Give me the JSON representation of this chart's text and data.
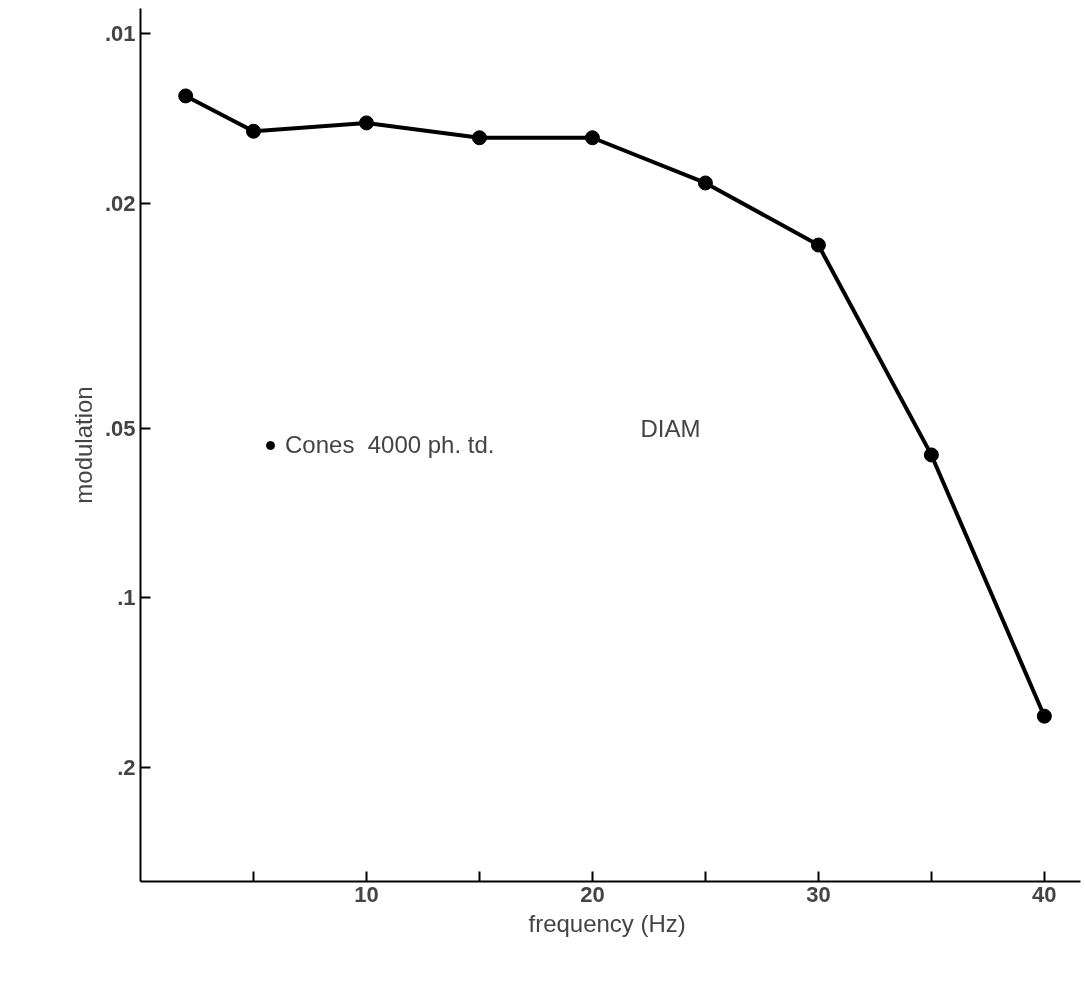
{
  "chart_data": {
    "type": "line",
    "xlabel": "frequency  (Hz)",
    "ylabel": "modulation",
    "log": "y",
    "xlim": [
      0,
      41.6
    ],
    "xticks": [
      {
        "value": 5,
        "label": null
      },
      10,
      {
        "value": 15,
        "label": null
      },
      20,
      {
        "value": 25,
        "label": null
      },
      30,
      {
        "value": 35,
        "label": null
      },
      40
    ],
    "ylim": [
      0.318,
      0.00903
    ],
    "yticks": [
      {
        "value": 0.01,
        "label": ".01"
      },
      {
        "value": 0.02,
        "label": ".02"
      },
      {
        "value": 0.05,
        "label": ".05"
      },
      {
        "value": 0.1,
        "label": ".1"
      },
      {
        "value": 0.2,
        "label": ".2"
      }
    ],
    "x": [
      2,
      5,
      10,
      15,
      20,
      25,
      30,
      35,
      40
    ],
    "series": [
      {
        "name": "Cones  4000 ph. td.",
        "color": "#000000",
        "values": [
          0.0129,
          0.0149,
          0.0144,
          0.0153,
          0.0153,
          0.0184,
          0.0237,
          0.0558,
          0.162
        ]
      }
    ],
    "marker": "circle",
    "line_style": "solid",
    "grid": false,
    "legend": "left",
    "annotations": [
      "DIAM"
    ]
  }
}
